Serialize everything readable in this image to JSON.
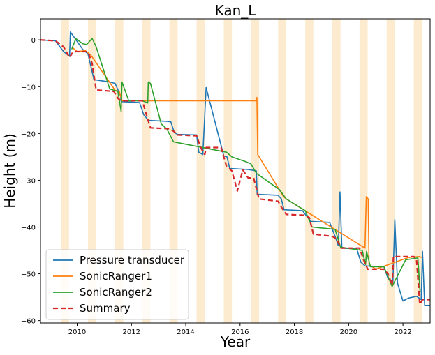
{
  "chart_data": {
    "type": "line",
    "title": "Kan_L",
    "xlabel": "Year",
    "ylabel": "Height (m)",
    "xlim": [
      2008.65,
      2023.0
    ],
    "ylim": [
      -60.5,
      4.5
    ],
    "xticks": [
      2010,
      2012,
      2014,
      2016,
      2018,
      2020,
      2022
    ],
    "yticks": [
      0,
      -10,
      -20,
      -30,
      -40,
      -50,
      -60
    ],
    "grid": false,
    "legend_position": "lower-left",
    "summer_bands": [
      [
        2009.4,
        2009.7
      ],
      [
        2010.4,
        2010.7
      ],
      [
        2011.4,
        2011.7
      ],
      [
        2012.4,
        2012.7
      ],
      [
        2013.4,
        2013.7
      ],
      [
        2014.4,
        2014.7
      ],
      [
        2015.4,
        2015.7
      ],
      [
        2016.4,
        2016.7
      ],
      [
        2017.4,
        2017.7
      ],
      [
        2018.4,
        2018.7
      ],
      [
        2019.4,
        2019.7
      ],
      [
        2020.4,
        2020.7
      ],
      [
        2021.4,
        2021.7
      ],
      [
        2022.4,
        2022.7
      ]
    ],
    "band_color": "#fdebd0",
    "series": [
      {
        "name": "Pressure transducer",
        "color": "#1f77b4",
        "style": "solid",
        "x": [
          2008.65,
          2009.2,
          2009.5,
          2009.72,
          2009.75,
          2010.2,
          2010.4,
          2010.62,
          2011.2,
          2011.4,
          2011.6,
          2011.62,
          2012.3,
          2012.45,
          2012.63,
          2013.3,
          2013.45,
          2013.58,
          2013.7,
          2014.4,
          2014.48,
          2014.63,
          2014.75,
          2015.4,
          2015.52,
          2015.62,
          2016.3,
          2016.6,
          2016.63,
          2017.4,
          2017.52,
          2017.62,
          2018.3,
          2018.5,
          2018.6,
          2019.3,
          2019.5,
          2019.62,
          2019.68,
          2019.75,
          2020.3,
          2020.45,
          2020.6,
          2021.3,
          2021.45,
          2021.63,
          2021.7,
          2021.8,
          2022.0,
          2022.2,
          2022.5,
          2022.67,
          2022.72,
          2022.8,
          2023.0
        ],
        "y": [
          0,
          -0.2,
          -2.5,
          -3.5,
          1.7,
          -2,
          -3,
          -8.5,
          -9,
          -9.3,
          -12,
          -13.2,
          -13.4,
          -16,
          -17.2,
          -17.4,
          -17.5,
          -19.8,
          -20.2,
          -20.3,
          -24,
          -24.5,
          -10.2,
          -24.8,
          -25,
          -27.5,
          -27.7,
          -28,
          -33,
          -33.2,
          -34,
          -36.3,
          -36.5,
          -38,
          -38.8,
          -39,
          -42,
          -44,
          -32.5,
          -44.5,
          -44.7,
          -47.5,
          -48.3,
          -48.5,
          -51,
          -51.8,
          -38.4,
          -52,
          -55.8,
          -55.2,
          -54.8,
          -55.5,
          -45.2,
          -56.8,
          -56.8
        ]
      },
      {
        "name": "SonicRanger1",
        "color": "#ff7f0e",
        "style": "solid",
        "x": [
          2009.8,
          2010.0,
          2010.3,
          2010.5,
          2011.4,
          2011.55,
          2011.65,
          2016.6,
          2016.62,
          2016.65,
          2017.6,
          2017.7,
          2020.6,
          2020.65,
          2020.72,
          2020.75,
          2021.0,
          2022.2,
          2022.6,
          2022.7
        ],
        "y": [
          -1.5,
          -2.5,
          -2.3,
          -3.2,
          -10.8,
          -11,
          -13,
          -13,
          -12.3,
          -24.5,
          -33.5,
          -34,
          -44.5,
          -33.5,
          -34,
          -48,
          -49,
          -46.5,
          -46.3,
          -46.5
        ]
      },
      {
        "name": "SonicRanger2",
        "color": "#2ca02c",
        "style": "solid",
        "x": [
          2009.8,
          2009.95,
          2010.2,
          2010.35,
          2010.55,
          2010.58,
          2010.7,
          2011.2,
          2011.5,
          2011.62,
          2011.65,
          2011.9,
          2012.4,
          2012.6,
          2012.62,
          2012.7,
          2013.1,
          2013.3,
          2013.55,
          2015.5,
          2015.7,
          2016.2,
          2016.4,
          2016.6,
          2017.45,
          2017.7,
          2018.4,
          2018.65,
          2019.5,
          2019.7,
          2020.5,
          2020.62,
          2020.66,
          2020.8,
          2021.3,
          2021.6,
          2022.1,
          2022.55,
          2022.63
        ],
        "y": [
          -2,
          0.3,
          -0.8,
          -1,
          0.3,
          0,
          -1.5,
          -10.5,
          -11,
          -15.3,
          -9,
          -13,
          -13,
          -13.5,
          -9,
          -9.3,
          -18,
          -19,
          -21.8,
          -24,
          -25,
          -26,
          -26.5,
          -28.5,
          -32,
          -34,
          -36.5,
          -40,
          -40.5,
          -44.3,
          -45,
          -48,
          -45.2,
          -48.5,
          -48.5,
          -52.7,
          -47,
          -46.6,
          -53.8
        ]
      },
      {
        "name": "Summary",
        "color": "#d62728",
        "style": "dashed",
        "x": [
          2008.65,
          2009.2,
          2009.5,
          2009.72,
          2009.85,
          2010.4,
          2010.55,
          2010.7,
          2011.35,
          2011.5,
          2011.62,
          2012.4,
          2012.55,
          2012.7,
          2013.4,
          2013.55,
          2013.7,
          2014.4,
          2014.55,
          2014.7,
          2014.75,
          2015.3,
          2015.5,
          2015.7,
          2015.9,
          2016.1,
          2016.3,
          2016.5,
          2016.7,
          2017.4,
          2017.55,
          2017.7,
          2018.4,
          2018.55,
          2018.7,
          2019.4,
          2019.55,
          2019.72,
          2020.4,
          2020.55,
          2020.7,
          2021.3,
          2021.45,
          2021.6,
          2021.65,
          2022.4,
          2022.5,
          2022.62,
          2022.72,
          2023.0
        ],
        "y": [
          0,
          -0.2,
          -1.5,
          -3.8,
          -2.5,
          -2.5,
          -5,
          -10.7,
          -11,
          -12.5,
          -13,
          -13,
          -16,
          -18.8,
          -19,
          -19.5,
          -20.3,
          -20.5,
          -23,
          -24.5,
          -23,
          -23,
          -27,
          -28,
          -32.3,
          -27.8,
          -29.5,
          -29.5,
          -34,
          -34.5,
          -36,
          -37.3,
          -37.5,
          -38,
          -41.5,
          -42,
          -42.5,
          -44.5,
          -44.5,
          -47,
          -49,
          -49,
          -50,
          -52.5,
          -46.3,
          -46.3,
          -47,
          -56.5,
          -55.5,
          -55.5
        ]
      }
    ]
  }
}
